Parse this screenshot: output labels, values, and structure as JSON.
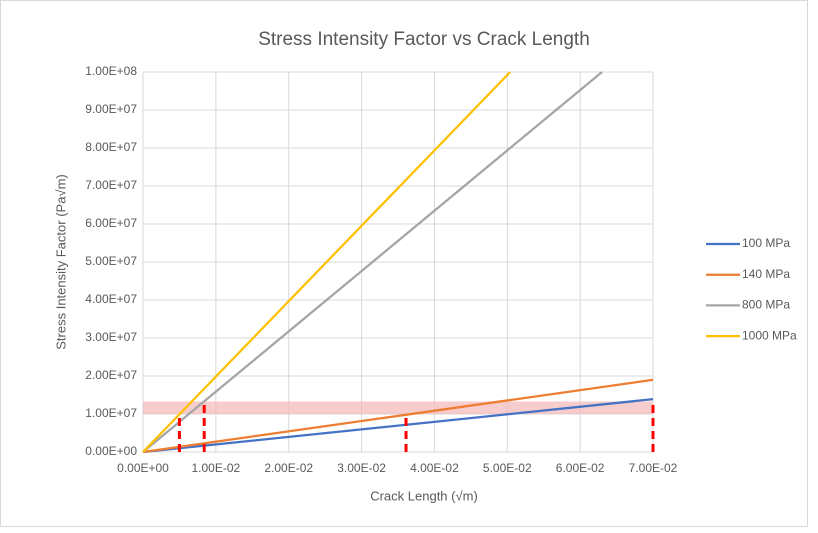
{
  "chart_data": {
    "type": "line",
    "title": "Stress Intensity Factor vs Crack Length",
    "x_label": "Crack Length (√m)",
    "y_label": "Stress Intensity Factor (Pa√m)",
    "xlim": [
      0,
      0.07
    ],
    "ylim": [
      0,
      100000000
    ],
    "xticks": [
      {
        "value": 0,
        "label": "0.00E+00"
      },
      {
        "value": 0.01,
        "label": "1.00E-02"
      },
      {
        "value": 0.02,
        "label": "2.00E-02"
      },
      {
        "value": 0.03,
        "label": "3.00E-02"
      },
      {
        "value": 0.04,
        "label": "4.00E-02"
      },
      {
        "value": 0.05,
        "label": "5.00E-02"
      },
      {
        "value": 0.06,
        "label": "6.00E-02"
      },
      {
        "value": 0.07,
        "label": "7.00E-02"
      }
    ],
    "yticks": [
      {
        "value": 0,
        "label": "0.00E+00"
      },
      {
        "value": 10000000,
        "label": "1.00E+07"
      },
      {
        "value": 20000000,
        "label": "2.00E+07"
      },
      {
        "value": 30000000,
        "label": "3.00E+07"
      },
      {
        "value": 40000000,
        "label": "4.00E+07"
      },
      {
        "value": 50000000,
        "label": "5.00E+07"
      },
      {
        "value": 60000000,
        "label": "6.00E+07"
      },
      {
        "value": 70000000,
        "label": "7.00E+07"
      },
      {
        "value": 80000000,
        "label": "8.00E+07"
      },
      {
        "value": 90000000,
        "label": "9.00E+07"
      },
      {
        "value": 100000000,
        "label": "1.00E+08"
      }
    ],
    "grid": true,
    "legend": "right",
    "series": [
      {
        "name": "100 MPa",
        "color": "#4472c4",
        "x": [
          0,
          0.07
        ],
        "values": [
          0,
          13900000
        ]
      },
      {
        "name": "140 MPa",
        "color": "#ed7d31",
        "x": [
          0,
          0.07
        ],
        "values": [
          0,
          19000000
        ]
      },
      {
        "name": "800 MPa",
        "color": "#a5a5a5",
        "x": [
          0,
          0.063
        ],
        "values": [
          0,
          100000000
        ]
      },
      {
        "name": "1000 MPa",
        "color": "#ffc000",
        "x": [
          0,
          0.0504
        ],
        "values": [
          0,
          100000000
        ]
      }
    ],
    "band": [
      10000000,
      13300000
    ],
    "band_color": "#f4b6b6",
    "markers": {
      "color": "#ff0000",
      "x": [
        0.005,
        0.0084,
        0.0361,
        0.07
      ],
      "values": [
        10000000,
        13300000,
        10000000,
        13300000
      ]
    }
  }
}
